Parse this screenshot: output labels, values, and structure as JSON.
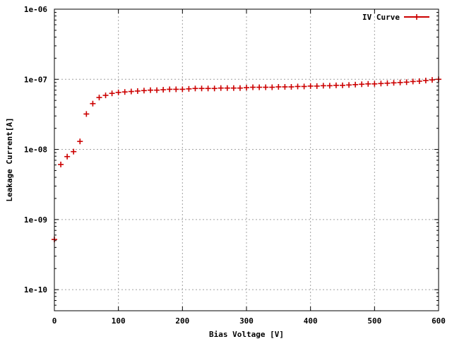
{
  "chart_data": {
    "type": "scatter",
    "title": "",
    "xlabel": "Bias Voltage [V]",
    "ylabel": "Leakage Current[A]",
    "xlim": [
      0,
      600
    ],
    "ylim": [
      5e-11,
      1e-06
    ],
    "yscale": "log",
    "grid": true,
    "legend_position": "top-right",
    "x_ticks": [
      {
        "value": 0,
        "label": "0"
      },
      {
        "value": 100,
        "label": "100"
      },
      {
        "value": 200,
        "label": "200"
      },
      {
        "value": 300,
        "label": "300"
      },
      {
        "value": 400,
        "label": "400"
      },
      {
        "value": 500,
        "label": "500"
      },
      {
        "value": 600,
        "label": "600"
      }
    ],
    "y_ticks": [
      {
        "value": 1e-10,
        "label": "1e-10"
      },
      {
        "value": 1e-09,
        "label": "1e-09"
      },
      {
        "value": 1e-08,
        "label": "1e-08"
      },
      {
        "value": 1e-07,
        "label": "1e-07"
      },
      {
        "value": 1e-06,
        "label": "1e-06"
      }
    ],
    "series": [
      {
        "name": "IV Curve",
        "color": "#cc0000",
        "points": [
          [
            0,
            5.2e-10
          ],
          [
            10,
            6.1e-09
          ],
          [
            20,
            7.9e-09
          ],
          [
            30,
            9.3e-09
          ],
          [
            40,
            1.3e-08
          ],
          [
            50,
            3.2e-08
          ],
          [
            60,
            4.5e-08
          ],
          [
            70,
            5.5e-08
          ],
          [
            80,
            5.9e-08
          ],
          [
            90,
            6.3e-08
          ],
          [
            100,
            6.5e-08
          ],
          [
            110,
            6.6e-08
          ],
          [
            120,
            6.7e-08
          ],
          [
            130,
            6.8e-08
          ],
          [
            140,
            6.9e-08
          ],
          [
            150,
            7e-08
          ],
          [
            160,
            7e-08
          ],
          [
            170,
            7.1e-08
          ],
          [
            180,
            7.2e-08
          ],
          [
            190,
            7.2e-08
          ],
          [
            200,
            7.2e-08
          ],
          [
            210,
            7.3e-08
          ],
          [
            220,
            7.4e-08
          ],
          [
            230,
            7.4e-08
          ],
          [
            240,
            7.4e-08
          ],
          [
            250,
            7.4e-08
          ],
          [
            260,
            7.5e-08
          ],
          [
            270,
            7.5e-08
          ],
          [
            280,
            7.5e-08
          ],
          [
            290,
            7.5e-08
          ],
          [
            300,
            7.6e-08
          ],
          [
            310,
            7.7e-08
          ],
          [
            320,
            7.7e-08
          ],
          [
            330,
            7.7e-08
          ],
          [
            340,
            7.7e-08
          ],
          [
            350,
            7.8e-08
          ],
          [
            360,
            7.8e-08
          ],
          [
            370,
            7.8e-08
          ],
          [
            380,
            7.9e-08
          ],
          [
            390,
            7.9e-08
          ],
          [
            400,
            8e-08
          ],
          [
            410,
            8e-08
          ],
          [
            420,
            8.1e-08
          ],
          [
            430,
            8.1e-08
          ],
          [
            440,
            8.2e-08
          ],
          [
            450,
            8.2e-08
          ],
          [
            460,
            8.3e-08
          ],
          [
            470,
            8.4e-08
          ],
          [
            480,
            8.5e-08
          ],
          [
            490,
            8.6e-08
          ],
          [
            500,
            8.6e-08
          ],
          [
            510,
            8.7e-08
          ],
          [
            520,
            8.8e-08
          ],
          [
            530,
            8.9e-08
          ],
          [
            540,
            9e-08
          ],
          [
            550,
            9.1e-08
          ],
          [
            560,
            9.3e-08
          ],
          [
            570,
            9.4e-08
          ],
          [
            580,
            9.6e-08
          ],
          [
            590,
            9.8e-08
          ],
          [
            600,
            1e-07
          ]
        ]
      }
    ]
  }
}
